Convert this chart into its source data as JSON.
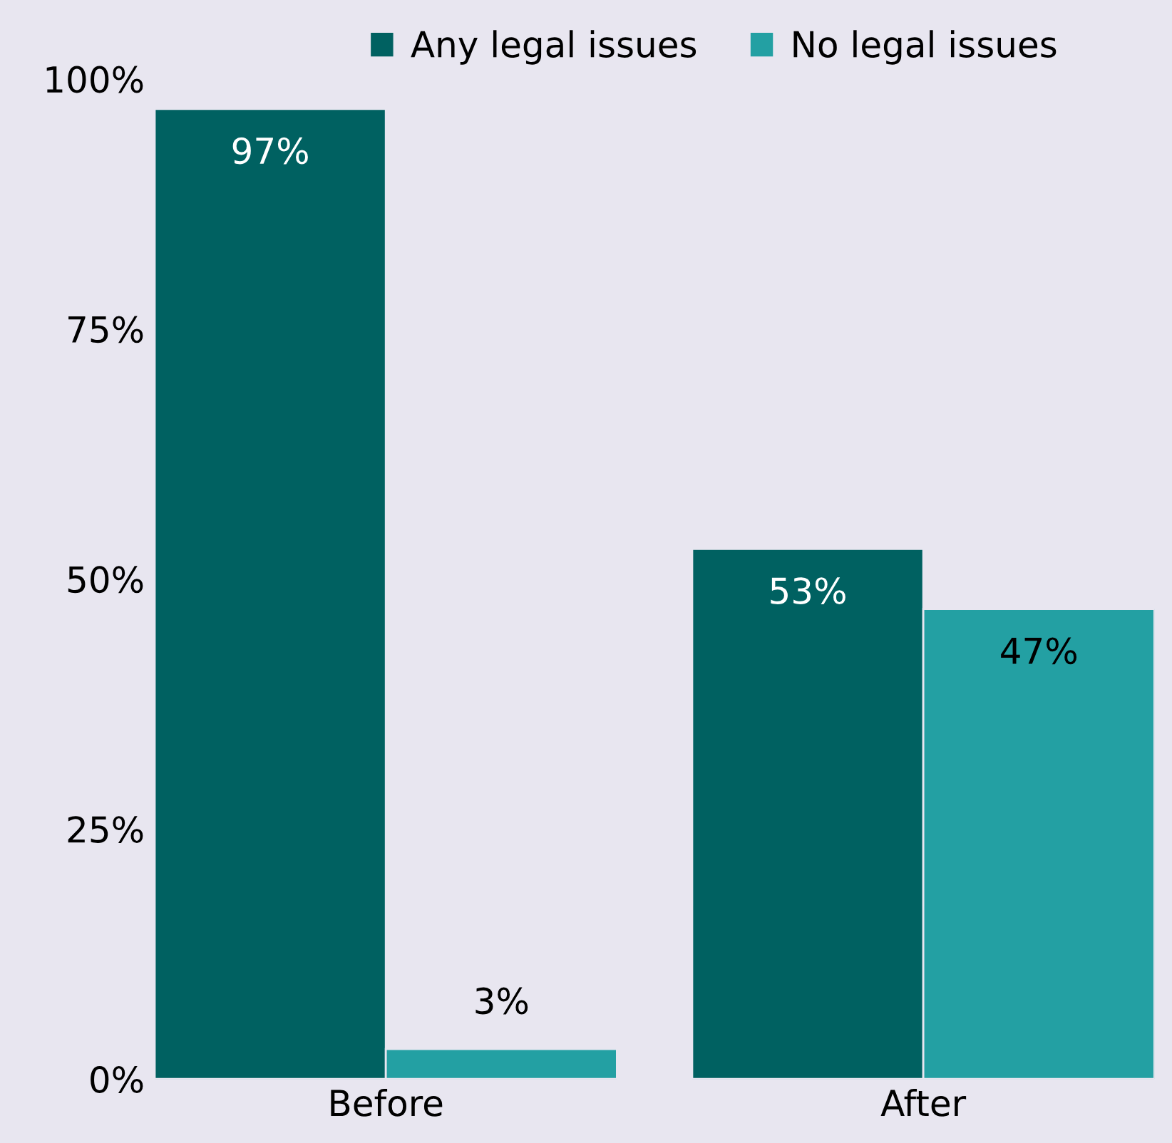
{
  "chart_data": {
    "type": "bar",
    "categories": [
      "Before",
      "After"
    ],
    "series": [
      {
        "name": "Any legal issues",
        "color": "#006161",
        "values": [
          97,
          53
        ]
      },
      {
        "name": "No legal issues",
        "color": "#23a0a3",
        "values": [
          3,
          47
        ]
      }
    ],
    "ylim": [
      0,
      100
    ],
    "yticks": [
      {
        "value": 0,
        "label": "0%"
      },
      {
        "value": 25,
        "label": "25%"
      },
      {
        "value": 50,
        "label": "50%"
      },
      {
        "value": 75,
        "label": "75%"
      },
      {
        "value": 100,
        "label": "100%"
      }
    ],
    "value_labels": [
      [
        "97%",
        "53%"
      ],
      [
        "3%",
        "47%"
      ]
    ],
    "legend": "top",
    "grid": false
  }
}
